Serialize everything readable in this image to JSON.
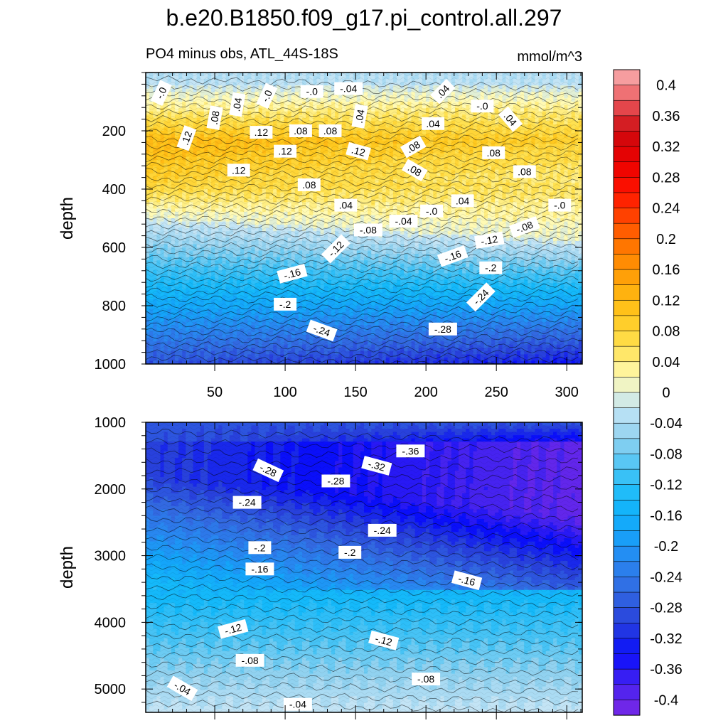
{
  "chart_data": {
    "type": "heatmap",
    "title": "b.e20.B1850.f09_g17.pi_control.all.297",
    "subtitle_left": "PO4 minus obs, ATL_44S-18S",
    "subtitle_right": "mmol/m^3",
    "colorbar": {
      "labels": [
        "0.4",
        "0.36",
        "0.32",
        "0.28",
        "0.24",
        "0.2",
        "0.16",
        "0.12",
        "0.08",
        "0.04",
        "0",
        "-0.04",
        "-0.08",
        "-0.12",
        "-0.16",
        "-0.2",
        "-0.24",
        "-0.28",
        "-0.32",
        "-0.36",
        "-0.4"
      ],
      "level_min": -0.42,
      "level_max": 0.42,
      "level_step": 0.02
    },
    "panels": [
      {
        "name": "upper",
        "ylabel": "depth",
        "xlabel": "",
        "xlim": [
          1,
          311
        ],
        "ylim": [
          0,
          1000
        ],
        "xticks": [
          "50",
          "100",
          "150",
          "200",
          "250",
          "300"
        ],
        "xtick_values": [
          50,
          100,
          150,
          200,
          250,
          300
        ],
        "yticks": [
          "200",
          "400",
          "600",
          "800",
          "1000"
        ],
        "ytick_values": [
          200,
          400,
          600,
          800,
          1000
        ],
        "contour_labels": [
          {
            "text": "-.0",
            "x": 12,
            "y": 70,
            "rot": -65
          },
          {
            "text": ".08",
            "x": 50,
            "y": 155,
            "rot": -80
          },
          {
            "text": ".04",
            "x": 66,
            "y": 110,
            "rot": -80
          },
          {
            "text": "-.0",
            "x": 87,
            "y": 80,
            "rot": -65
          },
          {
            "text": "-.0",
            "x": 119,
            "y": 65,
            "rot": 0
          },
          {
            "text": "-.04",
            "x": 145,
            "y": 55,
            "rot": 0
          },
          {
            "text": ".04",
            "x": 153,
            "y": 150,
            "rot": -80
          },
          {
            "text": ".04",
            "x": 212,
            "y": 65,
            "rot": -45
          },
          {
            "text": "-.0",
            "x": 240,
            "y": 115,
            "rot": 0
          },
          {
            "text": ".04",
            "x": 260,
            "y": 160,
            "rot": 50
          },
          {
            "text": ".12",
            "x": 30,
            "y": 225,
            "rot": -70
          },
          {
            "text": ".12",
            "x": 83,
            "y": 205,
            "rot": 0
          },
          {
            "text": ".08",
            "x": 111,
            "y": 200,
            "rot": 0
          },
          {
            "text": ".08",
            "x": 132,
            "y": 200,
            "rot": 0
          },
          {
            "text": ".04",
            "x": 205,
            "y": 175,
            "rot": 0
          },
          {
            "text": ".12",
            "x": 100,
            "y": 270,
            "rot": 0
          },
          {
            "text": ".12",
            "x": 152,
            "y": 270,
            "rot": 15
          },
          {
            "text": ".08",
            "x": 191,
            "y": 255,
            "rot": -30
          },
          {
            "text": ".08",
            "x": 248,
            "y": 275,
            "rot": 0
          },
          {
            "text": ".12",
            "x": 67,
            "y": 335,
            "rot": 0
          },
          {
            "text": ".08",
            "x": 117,
            "y": 385,
            "rot": 0
          },
          {
            "text": ".08",
            "x": 192,
            "y": 335,
            "rot": 30
          },
          {
            "text": ".08",
            "x": 270,
            "y": 340,
            "rot": 0
          },
          {
            "text": ".04",
            "x": 143,
            "y": 455,
            "rot": 0
          },
          {
            "text": "-.0",
            "x": 204,
            "y": 475,
            "rot": 0
          },
          {
            "text": ".04",
            "x": 226,
            "y": 440,
            "rot": 0
          },
          {
            "text": "-.0",
            "x": 295,
            "y": 455,
            "rot": 0
          },
          {
            "text": "-.08",
            "x": 159,
            "y": 540,
            "rot": 0
          },
          {
            "text": "-.04",
            "x": 184,
            "y": 510,
            "rot": 0
          },
          {
            "text": "-.08",
            "x": 270,
            "y": 530,
            "rot": -20
          },
          {
            "text": "-.12",
            "x": 136,
            "y": 605,
            "rot": -45
          },
          {
            "text": "-.12",
            "x": 245,
            "y": 575,
            "rot": -10
          },
          {
            "text": "-.16",
            "x": 105,
            "y": 690,
            "rot": -15
          },
          {
            "text": "-.16",
            "x": 219,
            "y": 630,
            "rot": -20
          },
          {
            "text": "-.2",
            "x": 246,
            "y": 670,
            "rot": 0
          },
          {
            "text": "-.2",
            "x": 100,
            "y": 795,
            "rot": 0
          },
          {
            "text": "-.24",
            "x": 239,
            "y": 770,
            "rot": -45
          },
          {
            "text": "-.24",
            "x": 126,
            "y": 885,
            "rot": 20
          },
          {
            "text": "-.28",
            "x": 212,
            "y": 880,
            "rot": 0
          }
        ]
      },
      {
        "name": "lower",
        "ylabel": "depth",
        "xlabel": "",
        "xlim": [
          1,
          311
        ],
        "ylim": [
          1000,
          5350
        ],
        "yticks": [
          "1000",
          "2000",
          "3000",
          "4000",
          "5000"
        ],
        "ytick_values": [
          1000,
          2000,
          3000,
          4000,
          5000
        ],
        "contour_labels": [
          {
            "text": "-.36",
            "x": 189,
            "y": 1430,
            "rot": 0
          },
          {
            "text": "-.32",
            "x": 165,
            "y": 1650,
            "rot": 15
          },
          {
            "text": "-.28",
            "x": 88,
            "y": 1720,
            "rot": 25
          },
          {
            "text": "-.28",
            "x": 136,
            "y": 1880,
            "rot": 0
          },
          {
            "text": "-.24",
            "x": 73,
            "y": 2200,
            "rot": 0
          },
          {
            "text": "-.24",
            "x": 169,
            "y": 2620,
            "rot": 0
          },
          {
            "text": "-.2",
            "x": 82,
            "y": 2880,
            "rot": 0
          },
          {
            "text": "-.2",
            "x": 146,
            "y": 2950,
            "rot": 0
          },
          {
            "text": "-.16",
            "x": 82,
            "y": 3200,
            "rot": 0
          },
          {
            "text": "-.16",
            "x": 229,
            "y": 3370,
            "rot": 15
          },
          {
            "text": "-.12",
            "x": 63,
            "y": 4100,
            "rot": -15
          },
          {
            "text": "-.12",
            "x": 170,
            "y": 4270,
            "rot": 15
          },
          {
            "text": "-.08",
            "x": 75,
            "y": 4570,
            "rot": 0
          },
          {
            "text": "-.08",
            "x": 200,
            "y": 4850,
            "rot": 0
          },
          {
            "text": "-.04",
            "x": 27,
            "y": 4990,
            "rot": 30
          },
          {
            "text": "-.04",
            "x": 109,
            "y": 5230,
            "rot": 0
          }
        ]
      }
    ]
  }
}
